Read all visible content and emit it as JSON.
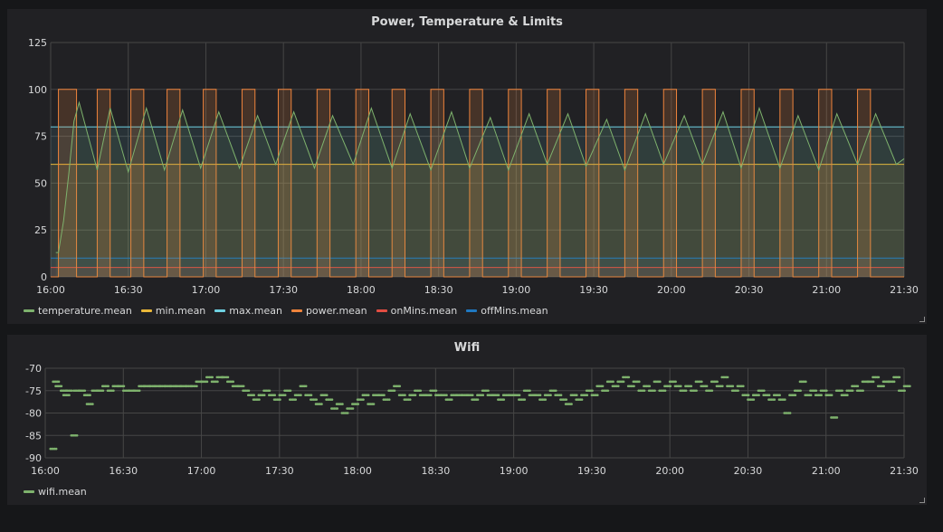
{
  "colors": {
    "temperature": "#7eb26d",
    "min": "#eab839",
    "max": "#6ed0e0",
    "power": "#ef843c",
    "onMins": "#e24d42",
    "offMins": "#1f78c1",
    "wifi": "#7eb26d"
  },
  "chart_data": [
    {
      "type": "line",
      "title": "Power, Temperature & Limits",
      "xlabel": "",
      "ylabel": "",
      "x_ticks": [
        "16:00",
        "16:30",
        "17:00",
        "17:30",
        "18:00",
        "18:30",
        "19:00",
        "19:30",
        "20:00",
        "20:30",
        "21:00",
        "21:30"
      ],
      "y_ticks": [
        "0",
        "25",
        "50",
        "75",
        "100",
        "125"
      ],
      "xlim": [
        "16:00",
        "21:30"
      ],
      "ylim": [
        0,
        125
      ],
      "grid": true,
      "legend_position": "bottom-left",
      "series": [
        {
          "name": "temperature.mean",
          "color_key": "temperature",
          "note_shape": "sawtooth",
          "points": [
            [
              "16:02",
              13
            ],
            [
              "16:03",
              13
            ],
            [
              "16:05",
              30
            ],
            [
              "16:07",
              55
            ],
            [
              "16:09",
              83
            ],
            [
              "16:11",
              93
            ],
            [
              "16:12",
              88
            ],
            [
              "16:18",
              57
            ],
            [
              "16:23",
              90
            ],
            [
              "16:30",
              56
            ],
            [
              "16:37",
              90
            ],
            [
              "16:44",
              57
            ],
            [
              "16:51",
              89
            ],
            [
              "16:58",
              58
            ],
            [
              "17:05",
              88
            ],
            [
              "17:13",
              58
            ],
            [
              "17:20",
              86
            ],
            [
              "17:27",
              60
            ],
            [
              "17:34",
              88
            ],
            [
              "17:42",
              58
            ],
            [
              "17:49",
              86
            ],
            [
              "17:57",
              60
            ],
            [
              "18:04",
              90
            ],
            [
              "18:12",
              58
            ],
            [
              "18:19",
              87
            ],
            [
              "18:27",
              57
            ],
            [
              "18:35",
              88
            ],
            [
              "18:42",
              58
            ],
            [
              "18:50",
              85
            ],
            [
              "18:57",
              57
            ],
            [
              "19:05",
              87
            ],
            [
              "19:12",
              60
            ],
            [
              "19:20",
              87
            ],
            [
              "19:27",
              59
            ],
            [
              "19:35",
              84
            ],
            [
              "19:42",
              57
            ],
            [
              "19:50",
              87
            ],
            [
              "19:57",
              60
            ],
            [
              "20:05",
              86
            ],
            [
              "20:12",
              60
            ],
            [
              "20:20",
              88
            ],
            [
              "20:27",
              58
            ],
            [
              "20:34",
              90
            ],
            [
              "20:42",
              58
            ],
            [
              "20:49",
              86
            ],
            [
              "20:57",
              57
            ],
            [
              "21:04",
              87
            ],
            [
              "21:12",
              60
            ],
            [
              "21:19",
              87
            ],
            [
              "21:27",
              60
            ],
            [
              "21:30",
              63
            ]
          ]
        },
        {
          "name": "min.mean",
          "color_key": "min",
          "constant": 60
        },
        {
          "name": "max.mean",
          "color_key": "max",
          "constant": 80
        },
        {
          "name": "power.mean",
          "color_key": "power",
          "on_intervals": [
            [
              "16:03",
              "16:10"
            ],
            [
              "16:18",
              "16:23"
            ],
            [
              "16:31",
              "16:36"
            ],
            [
              "16:45",
              "16:50"
            ],
            [
              "16:59",
              "17:04"
            ],
            [
              "17:14",
              "17:19"
            ],
            [
              "17:28",
              "17:33"
            ],
            [
              "17:43",
              "17:48"
            ],
            [
              "17:58",
              "18:03"
            ],
            [
              "18:12",
              "18:17"
            ],
            [
              "18:27",
              "18:32"
            ],
            [
              "18:42",
              "18:47"
            ],
            [
              "18:57",
              "19:02"
            ],
            [
              "19:12",
              "19:17"
            ],
            [
              "19:27",
              "19:32"
            ],
            [
              "19:42",
              "19:47"
            ],
            [
              "19:57",
              "20:02"
            ],
            [
              "20:12",
              "20:17"
            ],
            [
              "20:27",
              "20:32"
            ],
            [
              "20:42",
              "20:47"
            ],
            [
              "20:57",
              "21:02"
            ],
            [
              "21:12",
              "21:17"
            ]
          ],
          "on_value": 100,
          "off_value": 0
        },
        {
          "name": "onMins.mean",
          "color_key": "onMins",
          "constant": 5
        },
        {
          "name": "offMins.mean",
          "color_key": "offMins",
          "constant": 10
        }
      ]
    },
    {
      "type": "scatter",
      "title": "Wifi",
      "xlabel": "",
      "ylabel": "",
      "x_ticks": [
        "16:00",
        "16:30",
        "17:00",
        "17:30",
        "18:00",
        "18:30",
        "19:00",
        "19:30",
        "20:00",
        "20:30",
        "21:00",
        "21:30"
      ],
      "y_ticks": [
        "-70",
        "-75",
        "-80",
        "-85",
        "-90"
      ],
      "xlim": [
        "16:00",
        "21:30"
      ],
      "ylim": [
        -90,
        -70
      ],
      "grid": true,
      "legend_position": "bottom-left",
      "series": [
        {
          "name": "wifi.mean",
          "color_key": "wifi",
          "points": [
            [
              "16:02",
              -88
            ],
            [
              "16:03",
              -73
            ],
            [
              "16:04",
              -74
            ],
            [
              "16:06",
              -75
            ],
            [
              "16:07",
              -76
            ],
            [
              "16:08",
              -75
            ],
            [
              "16:10",
              -85
            ],
            [
              "16:11",
              -75
            ],
            [
              "16:13",
              -75
            ],
            [
              "16:15",
              -76
            ],
            [
              "16:16",
              -78
            ],
            [
              "16:18",
              -75
            ],
            [
              "16:20",
              -75
            ],
            [
              "16:22",
              -74
            ],
            [
              "16:24",
              -75
            ],
            [
              "16:26",
              -74
            ],
            [
              "16:28",
              -74
            ],
            [
              "16:30",
              -75
            ],
            [
              "16:32",
              -75
            ],
            [
              "16:34",
              -75
            ],
            [
              "16:36",
              -74
            ],
            [
              "16:38",
              -74
            ],
            [
              "16:40",
              -74
            ],
            [
              "16:42",
              -74
            ],
            [
              "16:44",
              -74
            ],
            [
              "16:46",
              -74
            ],
            [
              "16:48",
              -74
            ],
            [
              "16:50",
              -74
            ],
            [
              "16:52",
              -74
            ],
            [
              "16:54",
              -74
            ],
            [
              "16:56",
              -74
            ],
            [
              "16:58",
              -73
            ],
            [
              "17:00",
              -73
            ],
            [
              "17:02",
              -72
            ],
            [
              "17:04",
              -73
            ],
            [
              "17:06",
              -72
            ],
            [
              "17:08",
              -72
            ],
            [
              "17:10",
              -73
            ],
            [
              "17:12",
              -74
            ],
            [
              "17:14",
              -74
            ],
            [
              "17:16",
              -75
            ],
            [
              "17:18",
              -76
            ],
            [
              "17:20",
              -77
            ],
            [
              "17:22",
              -76
            ],
            [
              "17:24",
              -75
            ],
            [
              "17:26",
              -76
            ],
            [
              "17:28",
              -77
            ],
            [
              "17:30",
              -76
            ],
            [
              "17:32",
              -75
            ],
            [
              "17:34",
              -77
            ],
            [
              "17:36",
              -76
            ],
            [
              "17:38",
              -74
            ],
            [
              "17:40",
              -76
            ],
            [
              "17:42",
              -77
            ],
            [
              "17:44",
              -78
            ],
            [
              "17:46",
              -76
            ],
            [
              "17:48",
              -77
            ],
            [
              "17:50",
              -79
            ],
            [
              "17:52",
              -78
            ],
            [
              "17:54",
              -80
            ],
            [
              "17:56",
              -79
            ],
            [
              "17:58",
              -78
            ],
            [
              "18:00",
              -77
            ],
            [
              "18:02",
              -76
            ],
            [
              "18:04",
              -78
            ],
            [
              "18:06",
              -76
            ],
            [
              "18:08",
              -76
            ],
            [
              "18:10",
              -77
            ],
            [
              "18:12",
              -75
            ],
            [
              "18:14",
              -74
            ],
            [
              "18:16",
              -76
            ],
            [
              "18:18",
              -77
            ],
            [
              "18:20",
              -76
            ],
            [
              "18:22",
              -75
            ],
            [
              "18:24",
              -76
            ],
            [
              "18:26",
              -76
            ],
            [
              "18:28",
              -75
            ],
            [
              "18:30",
              -76
            ],
            [
              "18:32",
              -76
            ],
            [
              "18:34",
              -77
            ],
            [
              "18:36",
              -76
            ],
            [
              "18:38",
              -76
            ],
            [
              "18:40",
              -76
            ],
            [
              "18:42",
              -76
            ],
            [
              "18:44",
              -77
            ],
            [
              "18:46",
              -76
            ],
            [
              "18:48",
              -75
            ],
            [
              "18:50",
              -76
            ],
            [
              "18:52",
              -76
            ],
            [
              "18:54",
              -77
            ],
            [
              "18:56",
              -76
            ],
            [
              "18:58",
              -76
            ],
            [
              "19:00",
              -76
            ],
            [
              "19:02",
              -77
            ],
            [
              "19:04",
              -75
            ],
            [
              "19:06",
              -76
            ],
            [
              "19:08",
              -76
            ],
            [
              "19:10",
              -77
            ],
            [
              "19:12",
              -76
            ],
            [
              "19:14",
              -75
            ],
            [
              "19:16",
              -76
            ],
            [
              "19:18",
              -77
            ],
            [
              "19:20",
              -78
            ],
            [
              "19:22",
              -76
            ],
            [
              "19:24",
              -77
            ],
            [
              "19:26",
              -76
            ],
            [
              "19:28",
              -75
            ],
            [
              "19:30",
              -76
            ],
            [
              "19:32",
              -74
            ],
            [
              "19:34",
              -75
            ],
            [
              "19:36",
              -73
            ],
            [
              "19:38",
              -74
            ],
            [
              "19:40",
              -73
            ],
            [
              "19:42",
              -72
            ],
            [
              "19:44",
              -74
            ],
            [
              "19:46",
              -73
            ],
            [
              "19:48",
              -75
            ],
            [
              "19:50",
              -74
            ],
            [
              "19:52",
              -75
            ],
            [
              "19:54",
              -73
            ],
            [
              "19:56",
              -75
            ],
            [
              "19:58",
              -74
            ],
            [
              "20:00",
              -73
            ],
            [
              "20:02",
              -74
            ],
            [
              "20:04",
              -75
            ],
            [
              "20:06",
              -74
            ],
            [
              "20:08",
              -75
            ],
            [
              "20:10",
              -73
            ],
            [
              "20:12",
              -74
            ],
            [
              "20:14",
              -75
            ],
            [
              "20:16",
              -73
            ],
            [
              "20:18",
              -74
            ],
            [
              "20:20",
              -72
            ],
            [
              "20:22",
              -74
            ],
            [
              "20:24",
              -75
            ],
            [
              "20:26",
              -74
            ],
            [
              "20:28",
              -76
            ],
            [
              "20:30",
              -77
            ],
            [
              "20:32",
              -76
            ],
            [
              "20:34",
              -75
            ],
            [
              "20:36",
              -76
            ],
            [
              "20:38",
              -77
            ],
            [
              "20:40",
              -76
            ],
            [
              "20:42",
              -77
            ],
            [
              "20:44",
              -80
            ],
            [
              "20:46",
              -76
            ],
            [
              "20:48",
              -75
            ],
            [
              "20:50",
              -73
            ],
            [
              "20:52",
              -76
            ],
            [
              "20:54",
              -75
            ],
            [
              "20:56",
              -76
            ],
            [
              "20:58",
              -75
            ],
            [
              "21:00",
              -76
            ],
            [
              "21:02",
              -81
            ],
            [
              "21:04",
              -75
            ],
            [
              "21:06",
              -76
            ],
            [
              "21:08",
              -75
            ],
            [
              "21:10",
              -74
            ],
            [
              "21:12",
              -75
            ],
            [
              "21:14",
              -73
            ],
            [
              "21:16",
              -73
            ],
            [
              "21:18",
              -72
            ],
            [
              "21:20",
              -74
            ],
            [
              "21:22",
              -73
            ],
            [
              "21:24",
              -73
            ],
            [
              "21:26",
              -72
            ],
            [
              "21:28",
              -75
            ],
            [
              "21:30",
              -74
            ]
          ]
        }
      ]
    }
  ]
}
